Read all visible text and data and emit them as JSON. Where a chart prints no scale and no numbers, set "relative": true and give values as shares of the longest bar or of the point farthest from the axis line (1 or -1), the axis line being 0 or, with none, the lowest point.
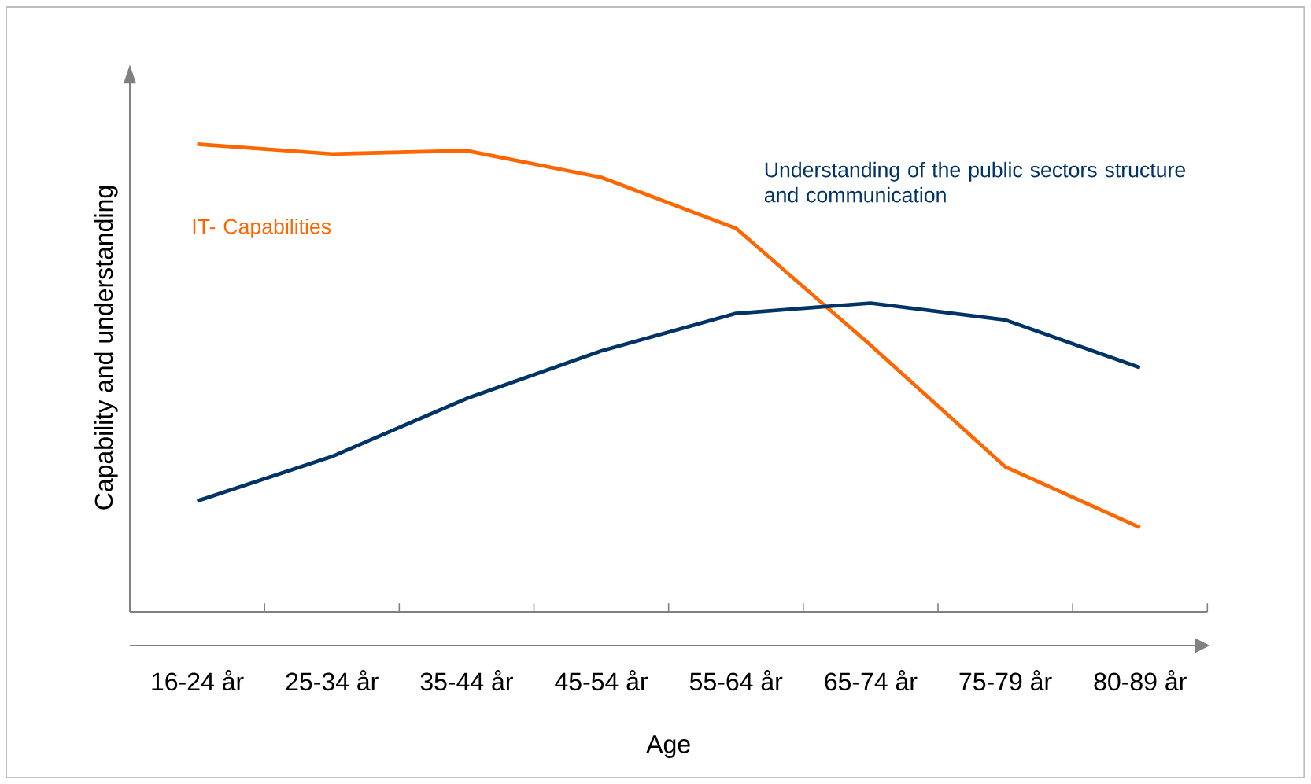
{
  "chart_data": {
    "type": "line",
    "relative": true,
    "xlabel": "Age",
    "ylabel": "Capability and understanding",
    "categories": [
      "16-24 år",
      "25-34 år",
      "35-44 år",
      "45-54 år",
      "55-64 år",
      "65-74 år",
      "75-79 år",
      "80-89 år"
    ],
    "series": [
      {
        "name": "IT- Capabilities",
        "color": "#ff6600",
        "values": [
          1,
          0.979,
          0.986,
          0.929,
          0.82,
          0.57,
          0.31,
          0.18
        ]
      },
      {
        "name": "Understanding of the public sectors structure and communication",
        "color": "#003366",
        "values": [
          0.237,
          0.332,
          0.456,
          0.558,
          0.638,
          0.66,
          0.624,
          0.522
        ]
      }
    ],
    "marker": "none",
    "line_style": "solid"
  }
}
